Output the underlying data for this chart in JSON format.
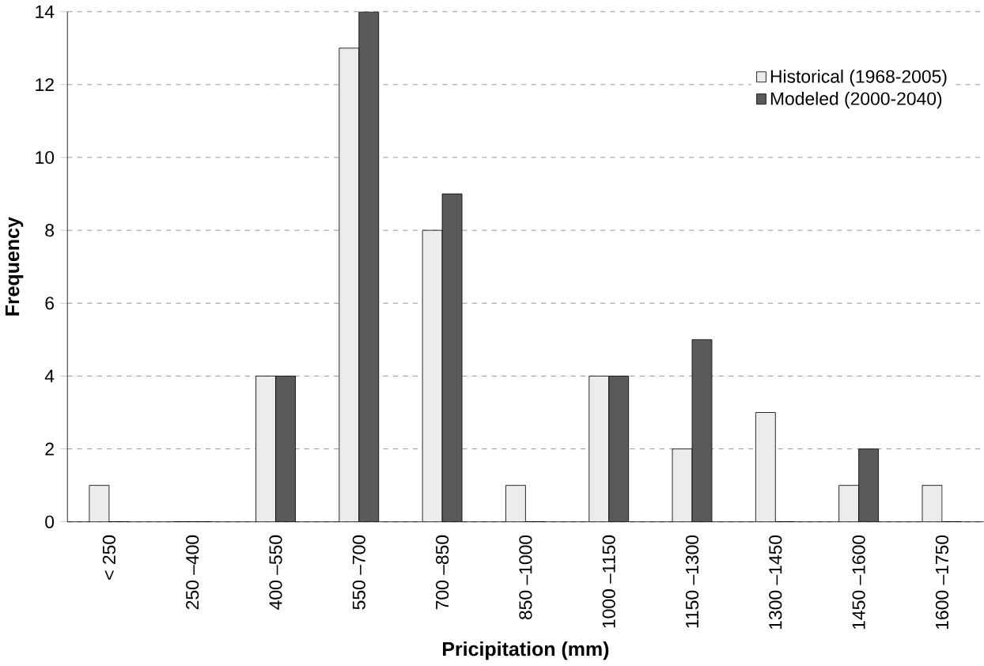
{
  "chart_data": {
    "type": "bar",
    "xlabel": "Pricipitation (mm)",
    "ylabel": "Frequency",
    "categories": [
      "< 250",
      "250 –400",
      "400 –550",
      "550 –700",
      "700 –850",
      "850 –1000",
      "1000 –1150",
      "1150 –1300",
      "1300 –1450",
      "1450 –1600",
      "1600 –1750"
    ],
    "series": [
      {
        "name": "Historical (1968-2005)",
        "color": "#ececec",
        "values": [
          1,
          0,
          4,
          13,
          8,
          1,
          4,
          2,
          3,
          1,
          1
        ]
      },
      {
        "name": "Modeled (2000-2040)",
        "color": "#5a5a5a",
        "values": [
          0,
          0,
          4,
          14,
          9,
          0,
          4,
          5,
          0,
          2,
          0
        ]
      }
    ],
    "ylim": [
      0,
      14
    ],
    "yticks": [
      0,
      2,
      4,
      6,
      8,
      10,
      12,
      14
    ],
    "grid": "y",
    "legend": "top right"
  }
}
